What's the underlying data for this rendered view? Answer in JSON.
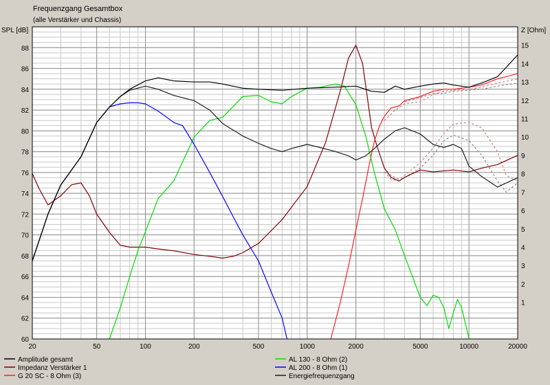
{
  "chart_data": {
    "type": "line",
    "title": "Frequenzgang Gesamtbox",
    "subtitle": "(alle Verstärker und Chassis)",
    "ylabel": "SPL [dB]",
    "y2label": "Z [Ohm]",
    "xscale": "log",
    "xlim": [
      20,
      20000
    ],
    "ylim": [
      60,
      90
    ],
    "y2lim": [
      -1,
      16
    ],
    "x_ticks": [
      20,
      50,
      100,
      200,
      500,
      1000,
      2000,
      5000,
      10000,
      20000
    ],
    "x_tick_labels": [
      "20",
      "50",
      "100",
      "200",
      "500",
      "1000",
      "2000",
      "5000",
      "10000",
      "20000"
    ],
    "y_ticks": [
      60,
      62,
      64,
      66,
      68,
      70,
      72,
      74,
      76,
      78,
      80,
      82,
      84,
      86,
      88
    ],
    "y2_ticks": [
      1,
      2,
      3,
      4,
      5,
      6,
      7,
      8,
      9,
      10,
      11,
      12,
      13,
      14,
      15
    ],
    "grid": true,
    "legend_position": "bottom",
    "colors": {
      "plot_bg": "#ffffff",
      "window_bg": "#d4d0c8",
      "grid_major": "#909090",
      "grid_minor": "#c8c8c8"
    },
    "series": [
      {
        "name": "Amplitude gesamt",
        "axis": "left",
        "color": "#000000",
        "dashed": false,
        "x": [
          20,
          25,
          30,
          40,
          50,
          60,
          70,
          80,
          100,
          120,
          150,
          200,
          250,
          300,
          400,
          500,
          700,
          1000,
          1500,
          2000,
          2500,
          3000,
          3500,
          4000,
          5000,
          6000,
          7000,
          8000,
          10000,
          12000,
          15000,
          20000
        ],
        "y": [
          67.5,
          72.0,
          74.8,
          77.5,
          80.8,
          82.3,
          83.3,
          84.0,
          84.8,
          85.1,
          84.8,
          84.7,
          84.7,
          84.5,
          84.1,
          84.0,
          83.9,
          84.1,
          84.2,
          84.3,
          83.8,
          83.7,
          84.3,
          84.0,
          84.3,
          84.5,
          84.6,
          84.4,
          84.2,
          84.6,
          85.2,
          87.3
        ]
      },
      {
        "name": "AL 130 - 8 Ohm (2)",
        "axis": "left",
        "color": "#00dd00",
        "dashed": false,
        "x": [
          60,
          70,
          80,
          90,
          100,
          120,
          150,
          200,
          250,
          300,
          400,
          500,
          600,
          700,
          800,
          1000,
          1200,
          1500,
          1700,
          2000,
          2300,
          2600,
          3000,
          3500,
          4000,
          5000,
          5500,
          6000,
          6500,
          7000,
          7500,
          8000,
          8500,
          9000,
          9500,
          10000
        ],
        "y": [
          60,
          63,
          66,
          68.5,
          70.3,
          73.5,
          75.2,
          79.4,
          81.0,
          81.3,
          83.3,
          83.4,
          82.8,
          82.6,
          83.3,
          84.1,
          84.2,
          84.5,
          84.3,
          82.5,
          79.5,
          76.0,
          72.5,
          70.5,
          68.0,
          64.0,
          63.2,
          64.2,
          64.0,
          63.0,
          61.0,
          62.5,
          63.8,
          63.0,
          61.5,
          60.0
        ]
      },
      {
        "name": "Impedanz Verstärker 1",
        "axis": "right",
        "color": "#800000",
        "dashed": false,
        "x": [
          20,
          22,
          25,
          30,
          35,
          40,
          45,
          50,
          60,
          70,
          80,
          100,
          120,
          150,
          200,
          250,
          300,
          350,
          400,
          500,
          700,
          1000,
          1300,
          1600,
          1800,
          2000,
          2200,
          2500,
          2700,
          3000,
          3300,
          3700,
          4000,
          5000,
          6000,
          8000,
          10000,
          12000,
          15000,
          20000
        ],
        "y": [
          8.0,
          7.2,
          6.3,
          6.8,
          7.4,
          7.5,
          6.8,
          5.8,
          4.8,
          4.1,
          4.0,
          4.0,
          3.9,
          3.8,
          3.6,
          3.5,
          3.4,
          3.5,
          3.7,
          4.2,
          5.5,
          7.3,
          9.7,
          12.5,
          14.3,
          15.0,
          14.0,
          10.5,
          9.5,
          8.3,
          7.8,
          7.6,
          7.8,
          8.2,
          8.1,
          8.2,
          8.1,
          8.3,
          8.5,
          9.0
        ]
      },
      {
        "name": "AL 200 - 8 Ohm (1)",
        "axis": "left",
        "color": "#0000ff",
        "dashed": false,
        "x": [
          20,
          25,
          30,
          40,
          50,
          60,
          70,
          80,
          90,
          100,
          120,
          150,
          170,
          200,
          250,
          300,
          350,
          400,
          500,
          600,
          700,
          750
        ],
        "y": [
          67.5,
          72.0,
          74.8,
          77.5,
          80.8,
          82.3,
          82.6,
          82.7,
          82.7,
          82.6,
          81.9,
          80.8,
          80.5,
          78.7,
          76.0,
          73.7,
          71.7,
          70.0,
          67.5,
          64.5,
          62.0,
          60.0
        ]
      },
      {
        "name": "G 20 SC - 8 Ohm (3)",
        "axis": "left",
        "color": "#ff2020",
        "dashed": false,
        "x": [
          1400,
          1600,
          1800,
          2000,
          2200,
          2400,
          2600,
          2800,
          3000,
          3300,
          3700,
          4000,
          5000,
          6000,
          7000,
          8000,
          10000,
          12000,
          15000,
          20000
        ],
        "y": [
          60.0,
          63.5,
          67.0,
          70.5,
          73.5,
          76.5,
          79.0,
          80.5,
          81.4,
          82.2,
          82.4,
          82.9,
          83.3,
          83.8,
          84.0,
          84.0,
          84.2,
          84.4,
          85.0,
          85.5
        ]
      },
      {
        "name": "Energiefrequenzgang",
        "axis": "left",
        "color": "#202020",
        "dashed": false,
        "x": [
          20,
          25,
          30,
          40,
          50,
          60,
          70,
          80,
          100,
          120,
          150,
          200,
          250,
          300,
          400,
          500,
          600,
          700,
          800,
          1000,
          1200,
          1500,
          1800,
          2000,
          2300,
          2600,
          3000,
          3500,
          4000,
          5000,
          6000,
          7000,
          8000,
          9000,
          10000,
          12000,
          15000,
          20000
        ],
        "y": [
          67.5,
          72.0,
          74.8,
          77.5,
          80.8,
          82.3,
          83.3,
          83.9,
          84.3,
          84.0,
          83.4,
          82.9,
          82.0,
          80.7,
          79.5,
          78.8,
          78.3,
          78.0,
          78.3,
          78.7,
          78.4,
          78.0,
          77.6,
          77.2,
          77.6,
          78.3,
          79.2,
          80.0,
          80.3,
          79.7,
          78.7,
          78.4,
          78.7,
          78.3,
          76.6,
          75.6,
          74.6,
          75.5
        ]
      },
      {
        "name": "",
        "axis": "left",
        "color": "#d08080",
        "dashed": true,
        "x": [
          3000,
          3500,
          4000,
          5000,
          6000,
          7000,
          8000,
          10000,
          12000,
          15000,
          20000
        ],
        "y": [
          81.0,
          82.0,
          82.6,
          82.8,
          83.5,
          83.8,
          83.9,
          84.0,
          84.2,
          84.6,
          85.0
        ]
      },
      {
        "name": "",
        "axis": "left",
        "color": "#888888",
        "dashed": true,
        "x": [
          4000,
          5000,
          6000,
          7000,
          8000,
          10000,
          12000,
          15000,
          20000
        ],
        "y": [
          82.8,
          83.2,
          83.6,
          83.6,
          83.8,
          83.9,
          84.0,
          84.3,
          84.6
        ]
      },
      {
        "name": "",
        "axis": "right",
        "color": "#d08080",
        "dashed": true,
        "x": [
          3000,
          3300,
          3700,
          4000,
          5000,
          6000,
          7000,
          8000,
          10000,
          12000,
          15000,
          17000,
          20000
        ],
        "y": [
          8.3,
          7.9,
          7.7,
          7.9,
          8.6,
          9.4,
          10.2,
          10.7,
          10.8,
          10.5,
          9.2,
          7.9,
          7.6
        ]
      },
      {
        "name": "",
        "axis": "right",
        "color": "#888888",
        "dashed": true,
        "x": [
          3000,
          3300,
          3700,
          4000,
          5000,
          6000,
          7000,
          8000,
          10000,
          12000,
          15000,
          17000,
          20000
        ],
        "y": [
          8.1,
          7.7,
          7.6,
          7.8,
          8.3,
          9.0,
          9.8,
          10.1,
          9.8,
          9.0,
          7.6,
          7.0,
          7.5
        ]
      }
    ]
  }
}
